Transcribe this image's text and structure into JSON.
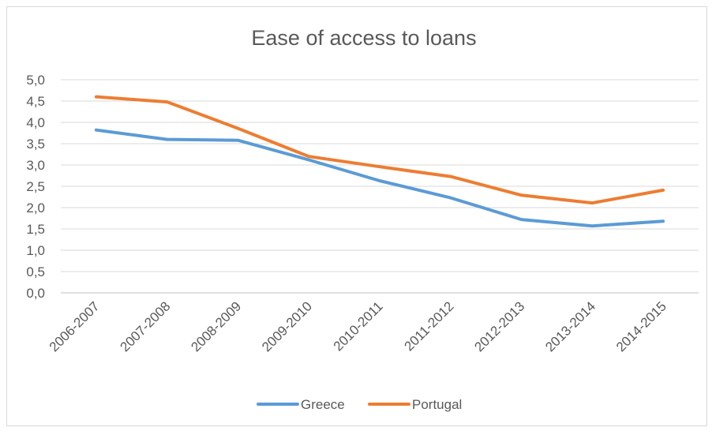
{
  "chart_data": {
    "type": "line",
    "title": "Ease of access to loans",
    "xlabel": "",
    "ylabel": "",
    "categories": [
      "2006-2007",
      "2007-2008",
      "2008-2009",
      "2009-2010",
      "2010-2011",
      "2011-2012",
      "2012-2013",
      "2013-2014",
      "2014-2015"
    ],
    "y_ticks": [
      "0,0",
      "0,5",
      "1,0",
      "1,5",
      "2,0",
      "2,5",
      "3,0",
      "3,5",
      "4,0",
      "4,5",
      "5,0"
    ],
    "ylim": [
      0,
      5
    ],
    "grid": true,
    "legend_position": "bottom",
    "series": [
      {
        "name": "Greece",
        "color": "#5b9bd5",
        "values": [
          3.82,
          3.6,
          3.58,
          3.12,
          2.63,
          2.23,
          1.72,
          1.57,
          1.68
        ]
      },
      {
        "name": "Portugal",
        "color": "#ed7d31",
        "values": [
          4.6,
          4.48,
          3.86,
          3.2,
          2.96,
          2.73,
          2.29,
          2.11,
          2.41
        ]
      }
    ]
  }
}
